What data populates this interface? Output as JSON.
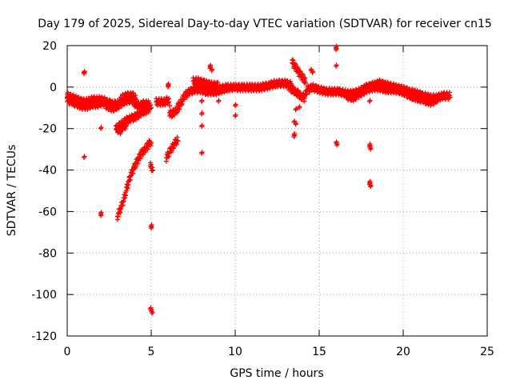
{
  "chart_data": {
    "type": "scatter",
    "title": "Day 179 of 2025, Sidereal Day-to-day VTEC variation (SDTVAR) for receiver cn15",
    "xlabel": "GPS time / hours",
    "ylabel": "SDTVAR / TECUs",
    "xlim": [
      0,
      25
    ],
    "ylim": [
      -120,
      20
    ],
    "xticks": [
      0,
      5,
      10,
      15,
      20,
      25
    ],
    "yticks": [
      20,
      0,
      -20,
      -40,
      -60,
      -80,
      -100,
      -120
    ],
    "xtick_labels": [
      "0",
      "5",
      "10",
      "15",
      "20",
      "25"
    ],
    "ytick_labels": [
      "20",
      "0",
      "-20",
      "-40",
      "-60",
      "-80",
      "-100",
      "-120"
    ],
    "grid": true,
    "marker": "plus",
    "color": "#ff0000",
    "series": [
      {
        "name": "SDTVAR",
        "tracks": [
          [
            [
              0.0,
              -5
            ],
            [
              0.3,
              -6
            ],
            [
              0.6,
              -7
            ],
            [
              0.9,
              -8
            ],
            [
              1.2,
              -8
            ],
            [
              1.5,
              -7
            ],
            [
              1.8,
              -7
            ],
            [
              2.1,
              -7
            ],
            [
              2.4,
              -8
            ],
            [
              2.7,
              -9
            ],
            [
              3.0,
              -9
            ],
            [
              3.3,
              -6
            ],
            [
              3.6,
              -5
            ],
            [
              3.9,
              -5
            ],
            [
              4.1,
              -6
            ]
          ],
          [
            [
              0.0,
              -7
            ],
            [
              0.3,
              -8
            ],
            [
              0.6,
              -9
            ],
            [
              0.9,
              -10
            ],
            [
              1.2,
              -10
            ],
            [
              1.5,
              -9
            ],
            [
              1.8,
              -9
            ],
            [
              2.1,
              -8
            ],
            [
              2.4,
              -10
            ],
            [
              2.7,
              -11
            ],
            [
              3.0,
              -10
            ],
            [
              3.3,
              -8
            ],
            [
              3.6,
              -7
            ],
            [
              3.9,
              -7
            ]
          ],
          [
            [
              3.9,
              -8
            ],
            [
              4.1,
              -9
            ],
            [
              4.3,
              -10
            ],
            [
              4.5,
              -9
            ],
            [
              4.8,
              -9
            ],
            [
              5.0,
              -10
            ]
          ],
          [
            [
              5.3,
              -8
            ],
            [
              5.6,
              -8
            ],
            [
              5.8,
              -8
            ],
            [
              6.0,
              -7
            ],
            [
              6.1,
              -9
            ]
          ],
          [
            [
              2.9,
              -21
            ],
            [
              3.2,
              -19
            ],
            [
              3.5,
              -17
            ],
            [
              3.8,
              -16
            ],
            [
              4.1,
              -15
            ],
            [
              4.4,
              -13
            ],
            [
              4.7,
              -12
            ],
            [
              4.9,
              -11
            ]
          ],
          [
            [
              3.0,
              -21
            ],
            [
              3.2,
              -22
            ],
            [
              3.3,
              -20
            ],
            [
              3.5,
              -19
            ]
          ],
          [
            [
              3.0,
              -63
            ],
            [
              3.2,
              -59
            ],
            [
              3.4,
              -54
            ],
            [
              3.6,
              -48
            ],
            [
              3.8,
              -43
            ],
            [
              4.0,
              -39
            ],
            [
              4.2,
              -36
            ],
            [
              4.4,
              -33
            ],
            [
              4.6,
              -31
            ],
            [
              4.8,
              -29
            ],
            [
              5.0,
              -27
            ]
          ],
          [
            [
              4.95,
              -39
            ],
            [
              5.1,
              -40
            ]
          ],
          [
            [
              5.9,
              -35
            ],
            [
              6.1,
              -32
            ],
            [
              6.3,
              -29
            ],
            [
              6.5,
              -27
            ],
            [
              6.6,
              -26
            ]
          ],
          [
            [
              6.1,
              -14
            ],
            [
              6.4,
              -13
            ],
            [
              6.6,
              -11
            ],
            [
              6.8,
              -8
            ],
            [
              7.0,
              -5
            ],
            [
              7.3,
              -3
            ],
            [
              7.6,
              -2
            ],
            [
              8.0,
              -2
            ],
            [
              8.3,
              -3
            ],
            [
              8.6,
              -3
            ],
            [
              9.0,
              -2
            ],
            [
              9.5,
              -1
            ],
            [
              10.0,
              -1
            ],
            [
              10.5,
              -1
            ],
            [
              11.0,
              -1
            ],
            [
              11.5,
              -1
            ],
            [
              12.0,
              0
            ],
            [
              12.5,
              1
            ],
            [
              13.0,
              1
            ],
            [
              13.4,
              0
            ]
          ],
          [
            [
              7.5,
              2
            ],
            [
              7.8,
              2
            ],
            [
              8.2,
              1
            ],
            [
              8.6,
              0
            ],
            [
              9.0,
              0
            ]
          ],
          [
            [
              8.0,
              -1
            ],
            [
              8.4,
              -2
            ],
            [
              8.8,
              -3
            ],
            [
              9.2,
              -2
            ],
            [
              9.6,
              -1
            ]
          ],
          [
            [
              13.2,
              -1
            ],
            [
              13.6,
              -3
            ],
            [
              13.9,
              -5
            ],
            [
              14.1,
              -6
            ],
            [
              14.3,
              -2
            ],
            [
              14.6,
              -1
            ],
            [
              15.0,
              -2
            ],
            [
              15.4,
              -3
            ],
            [
              15.8,
              -3
            ],
            [
              16.2,
              -3
            ],
            [
              16.6,
              -4
            ],
            [
              17.0,
              -4
            ],
            [
              17.4,
              -3
            ],
            [
              17.8,
              -1
            ],
            [
              18.2,
              0
            ],
            [
              18.6,
              1
            ],
            [
              19.0,
              0
            ],
            [
              19.5,
              -1
            ],
            [
              20.0,
              -2
            ],
            [
              20.4,
              -3
            ],
            [
              20.8,
              -4
            ],
            [
              21.2,
              -5
            ],
            [
              21.6,
              -6
            ],
            [
              22.0,
              -6
            ],
            [
              22.4,
              -5
            ],
            [
              22.8,
              -5
            ]
          ],
          [
            [
              16.6,
              -5
            ],
            [
              17.0,
              -6
            ],
            [
              17.4,
              -4
            ],
            [
              17.8,
              -2
            ],
            [
              18.2,
              -1
            ],
            [
              18.6,
              -1
            ],
            [
              19.0,
              -2
            ],
            [
              19.5,
              -2
            ],
            [
              20.0,
              -3
            ],
            [
              20.4,
              -5
            ],
            [
              20.8,
              -6
            ],
            [
              21.2,
              -7
            ],
            [
              21.6,
              -8
            ],
            [
              22.0,
              -7
            ]
          ],
          [
            [
              13.4,
              11
            ],
            [
              13.6,
              9
            ],
            [
              13.8,
              6
            ],
            [
              14.0,
              4
            ],
            [
              14.2,
              2
            ]
          ]
        ],
        "points": [
          [
            1.0,
            7
          ],
          [
            1.0,
            6.5
          ],
          [
            1.0,
            -34
          ],
          [
            2.0,
            -20
          ],
          [
            2.0,
            -61
          ],
          [
            2.0,
            -62
          ],
          [
            5.0,
            -67
          ],
          [
            5.0,
            -68
          ],
          [
            5.0,
            -108
          ],
          [
            5.05,
            -109
          ],
          [
            4.95,
            -107
          ],
          [
            6.0,
            0
          ],
          [
            6.0,
            1
          ],
          [
            6.6,
            -8
          ],
          [
            8.0,
            -7
          ],
          [
            8.0,
            -13
          ],
          [
            8.0,
            -19
          ],
          [
            8.0,
            -32
          ],
          [
            8.5,
            9
          ],
          [
            8.5,
            10
          ],
          [
            8.6,
            8
          ],
          [
            9.0,
            -7
          ],
          [
            10.0,
            -9
          ],
          [
            10.0,
            -14
          ],
          [
            13.5,
            -17
          ],
          [
            13.6,
            -18
          ],
          [
            13.5,
            -23
          ],
          [
            13.5,
            -24
          ],
          [
            13.6,
            -11
          ],
          [
            13.8,
            -10
          ],
          [
            16.0,
            19
          ],
          [
            16.0,
            18
          ],
          [
            16.0,
            10
          ],
          [
            16.0,
            -27
          ],
          [
            16.05,
            -28
          ],
          [
            18.0,
            -28
          ],
          [
            18.0,
            -29
          ],
          [
            18.05,
            -30
          ],
          [
            18.0,
            -46
          ],
          [
            18.0,
            -47
          ],
          [
            18.05,
            -48
          ],
          [
            18.0,
            -7
          ],
          [
            14.5,
            8
          ],
          [
            14.6,
            7
          ],
          [
            15.2,
            -3
          ]
        ]
      }
    ]
  }
}
